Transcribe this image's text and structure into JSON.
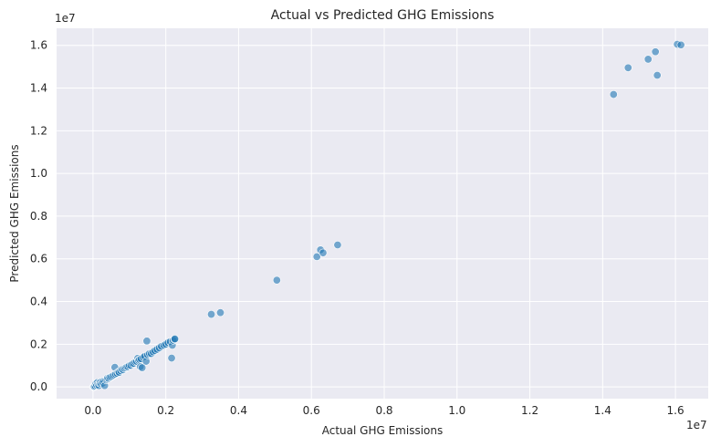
{
  "chart_data": {
    "type": "scatter",
    "title": "Actual vs Predicted GHG Emissions",
    "xlabel": "Actual GHG Emissions",
    "ylabel": "Predicted GHG Emissions",
    "x_offset_label": "1e7",
    "y_offset_label": "1e7",
    "xlim": [
      -1000000,
      16900000
    ],
    "ylim": [
      -550000,
      16800000
    ],
    "xticks": [
      0,
      2000000,
      4000000,
      6000000,
      8000000,
      10000000,
      12000000,
      14000000,
      16000000
    ],
    "xtick_labels": [
      "0.0",
      "0.2",
      "0.4",
      "0.6",
      "0.8",
      "1.0",
      "1.2",
      "1.4",
      "1.6"
    ],
    "yticks": [
      0,
      2000000,
      4000000,
      6000000,
      8000000,
      10000000,
      12000000,
      14000000,
      16000000
    ],
    "ytick_labels": [
      "0.0",
      "0.2",
      "0.4",
      "0.6",
      "0.8",
      "1.0",
      "1.2",
      "1.4",
      "1.6"
    ],
    "grid": true,
    "colors": {
      "background": "#eaeaf2",
      "grid": "#ffffff",
      "marker": "#1f77b4"
    },
    "points": [
      [
        10000,
        0
      ],
      [
        20000,
        10000
      ],
      [
        30000,
        30000
      ],
      [
        40000,
        20000
      ],
      [
        60000,
        50000
      ],
      [
        80000,
        150000
      ],
      [
        100000,
        80000
      ],
      [
        120000,
        200000
      ],
      [
        140000,
        120000
      ],
      [
        160000,
        60000
      ],
      [
        180000,
        180000
      ],
      [
        200000,
        220000
      ],
      [
        220000,
        150000
      ],
      [
        250000,
        250000
      ],
      [
        270000,
        180000
      ],
      [
        300000,
        280000
      ],
      [
        320000,
        60000
      ],
      [
        350000,
        330000
      ],
      [
        380000,
        360000
      ],
      [
        400000,
        410000
      ],
      [
        430000,
        400000
      ],
      [
        460000,
        450000
      ],
      [
        500000,
        480000
      ],
      [
        540000,
        520000
      ],
      [
        580000,
        560000
      ],
      [
        600000,
        920000
      ],
      [
        620000,
        600000
      ],
      [
        660000,
        640000
      ],
      [
        700000,
        700000
      ],
      [
        720000,
        680000
      ],
      [
        760000,
        760000
      ],
      [
        800000,
        820000
      ],
      [
        830000,
        800000
      ],
      [
        860000,
        870000
      ],
      [
        900000,
        900000
      ],
      [
        930000,
        940000
      ],
      [
        960000,
        950000
      ],
      [
        1000000,
        1000000
      ],
      [
        1040000,
        1010000
      ],
      [
        1080000,
        1080000
      ],
      [
        1120000,
        1100000
      ],
      [
        1160000,
        1170000
      ],
      [
        1200000,
        1200000
      ],
      [
        1230000,
        1340000
      ],
      [
        1250000,
        1240000
      ],
      [
        1280000,
        1280000
      ],
      [
        1300000,
        950000
      ],
      [
        1320000,
        1320000
      ],
      [
        1350000,
        900000
      ],
      [
        1380000,
        1390000
      ],
      [
        1420000,
        1430000
      ],
      [
        1460000,
        1200000
      ],
      [
        1480000,
        2150000
      ],
      [
        1500000,
        1500000
      ],
      [
        1550000,
        1560000
      ],
      [
        1600000,
        1560000
      ],
      [
        1650000,
        1640000
      ],
      [
        1700000,
        1700000
      ],
      [
        1760000,
        1760000
      ],
      [
        1820000,
        1830000
      ],
      [
        1880000,
        1900000
      ],
      [
        1950000,
        1950000
      ],
      [
        2000000,
        2000000
      ],
      [
        2060000,
        2070000
      ],
      [
        2120000,
        2120000
      ],
      [
        2160000,
        1350000
      ],
      [
        2180000,
        1950000
      ],
      [
        2200000,
        2180000
      ],
      [
        2240000,
        2230000
      ],
      [
        2250000,
        2250000
      ],
      [
        3250000,
        3400000
      ],
      [
        3500000,
        3480000
      ],
      [
        5050000,
        5000000
      ],
      [
        6150000,
        6100000
      ],
      [
        6250000,
        6420000
      ],
      [
        6320000,
        6280000
      ],
      [
        6720000,
        6650000
      ],
      [
        14300000,
        13700000
      ],
      [
        14700000,
        14950000
      ],
      [
        15250000,
        15350000
      ],
      [
        15450000,
        15700000
      ],
      [
        15500000,
        14600000
      ],
      [
        16050000,
        16050000
      ],
      [
        16150000,
        16020000
      ]
    ]
  }
}
